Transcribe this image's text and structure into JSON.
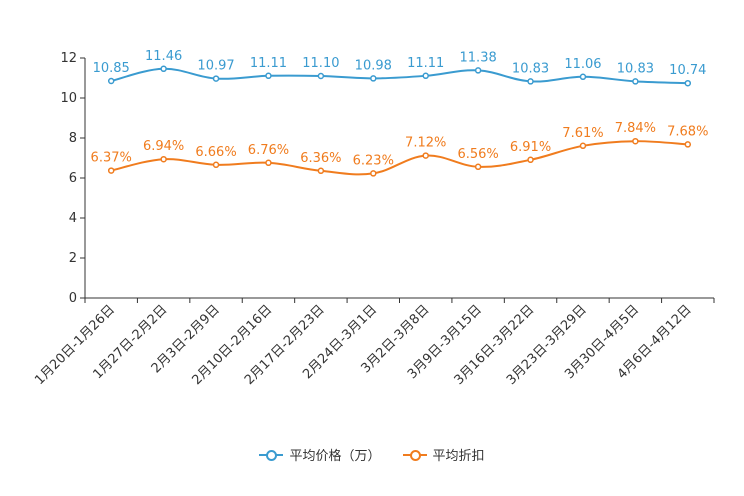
{
  "chart_data": {
    "type": "line",
    "categories": [
      "1月20日-1月26日",
      "1月27日-2月2日",
      "2月3日-2月9日",
      "2月10日-2月16日",
      "2月17日-2月23日",
      "2月24日-3月1日",
      "3月2日-3月8日",
      "3月9日-3月15日",
      "3月16日-3月22日",
      "3月23日-3月29日",
      "3月30日-4月5日",
      "4月6日-4月12日"
    ],
    "series": [
      {
        "name": "平均价格（万）",
        "color": "#3a9bd0",
        "values": [
          10.85,
          11.46,
          10.97,
          11.11,
          11.1,
          10.98,
          11.11,
          11.38,
          10.83,
          11.06,
          10.83,
          10.74
        ],
        "labels": [
          "10.85",
          "11.46",
          "10.97",
          "11.11",
          "11.10",
          "10.98",
          "11.11",
          "11.38",
          "10.83",
          "11.06",
          "10.83",
          "10.74"
        ]
      },
      {
        "name": "平均折扣",
        "color": "#f07c1e",
        "values": [
          6.37,
          6.94,
          6.66,
          6.76,
          6.36,
          6.23,
          7.12,
          6.56,
          6.91,
          7.61,
          7.84,
          7.68
        ],
        "labels": [
          "6.37%",
          "6.94%",
          "6.66%",
          "6.76%",
          "6.36%",
          "6.23%",
          "7.12%",
          "6.56%",
          "6.91%",
          "7.61%",
          "7.84%",
          "7.68%"
        ]
      }
    ],
    "yticks": [
      0,
      2,
      4,
      6,
      8,
      10,
      12
    ],
    "ylim": [
      0,
      12
    ],
    "legend_position": "bottom-center",
    "grid": false
  }
}
